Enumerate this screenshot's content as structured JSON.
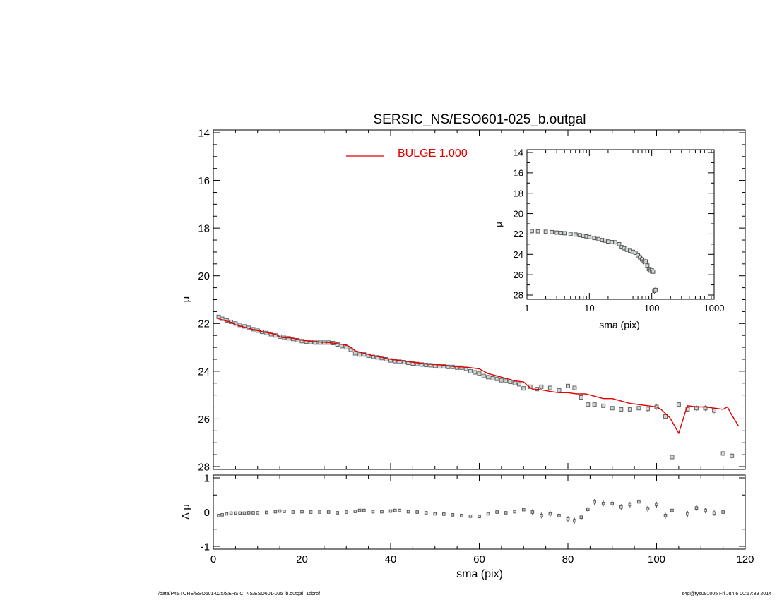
{
  "chart_data": [
    {
      "type": "scatter",
      "panel": "main",
      "title": "SERSIC_NS/ESO601-025_b.outgal",
      "xlabel": "",
      "ylabel": "μ",
      "xlim": [
        0,
        120
      ],
      "ylim": [
        28,
        14
      ],
      "y_inverted": true,
      "xticks": [
        0,
        20,
        40,
        60,
        80,
        100,
        120
      ],
      "yticks": [
        14,
        16,
        18,
        20,
        22,
        24,
        26,
        28
      ],
      "legend": {
        "placement": "top-center",
        "label": "BULGE  1.000",
        "color": "#e00000"
      },
      "series": [
        {
          "marker": "square-with-errorbar",
          "color": "#666666",
          "x": [
            1.2,
            2,
            3,
            4,
            5,
            6,
            7,
            8,
            9,
            10,
            11,
            12,
            13,
            14,
            15,
            16,
            17,
            18,
            19,
            20,
            21,
            22,
            23,
            24,
            25,
            26,
            27,
            28,
            29,
            30,
            31,
            32,
            33,
            34,
            35,
            36,
            37,
            38,
            39,
            40,
            41,
            42,
            43,
            44,
            45,
            46,
            47,
            48,
            49,
            50,
            51,
            52,
            53,
            54,
            55,
            56,
            57,
            58,
            59,
            60,
            61,
            62,
            63,
            64,
            65,
            66,
            67,
            68,
            69,
            70,
            71.5,
            73,
            74,
            76,
            78,
            80,
            81.5,
            83,
            84.5,
            86,
            88,
            90,
            92,
            94,
            96,
            98,
            100,
            102,
            103.5,
            105,
            107,
            109,
            111,
            113,
            115,
            117
          ],
          "y": [
            21.72,
            21.8,
            21.87,
            21.93,
            22.0,
            22.06,
            22.12,
            22.18,
            22.24,
            22.3,
            22.35,
            22.4,
            22.45,
            22.5,
            22.55,
            22.6,
            22.62,
            22.65,
            22.7,
            22.74,
            22.76,
            22.78,
            22.8,
            22.8,
            22.8,
            22.8,
            22.82,
            22.88,
            22.95,
            23.0,
            23.1,
            23.25,
            23.3,
            23.3,
            23.35,
            23.4,
            23.42,
            23.45,
            23.5,
            23.55,
            23.58,
            23.6,
            23.62,
            23.65,
            23.68,
            23.7,
            23.72,
            23.74,
            23.75,
            23.78,
            23.8,
            23.8,
            23.82,
            23.82,
            23.85,
            23.85,
            23.9,
            24.0,
            24.05,
            24.1,
            24.2,
            24.25,
            24.3,
            24.32,
            24.38,
            24.4,
            24.45,
            24.5,
            24.55,
            24.72,
            24.65,
            24.75,
            24.65,
            24.7,
            24.8,
            24.62,
            24.7,
            25.1,
            25.4,
            25.4,
            25.45,
            25.55,
            25.6,
            25.6,
            25.55,
            25.58,
            25.5,
            25.9,
            27.6,
            25.4,
            25.6,
            25.55,
            25.55,
            25.65,
            27.45,
            27.55
          ]
        },
        {
          "name": "BULGE  1.000",
          "marker": "line",
          "color": "#e00000",
          "x": [
            1.2,
            2,
            3,
            4,
            5,
            6,
            7,
            8,
            10,
            12,
            14,
            15,
            16,
            17,
            18,
            20,
            22,
            24,
            26,
            28,
            30,
            31,
            32,
            34,
            36,
            38,
            40,
            42,
            44,
            46,
            48,
            50,
            52,
            54,
            56,
            58,
            60,
            62,
            64,
            66,
            68,
            70,
            71,
            72,
            74,
            76,
            78,
            80,
            82,
            84,
            86,
            88,
            90,
            92,
            94,
            96,
            98,
            100,
            101,
            103,
            105,
            106.5,
            107,
            109,
            111,
            113,
            115,
            116,
            117,
            118.5
          ],
          "y": [
            21.8,
            21.85,
            21.9,
            21.95,
            22.05,
            22.1,
            22.15,
            22.2,
            22.3,
            22.38,
            22.45,
            22.55,
            22.6,
            22.6,
            22.62,
            22.7,
            22.75,
            22.78,
            22.8,
            22.85,
            22.9,
            23.0,
            23.15,
            23.25,
            23.35,
            23.42,
            23.5,
            23.55,
            23.6,
            23.65,
            23.7,
            23.72,
            23.75,
            23.8,
            23.82,
            23.85,
            23.9,
            24.1,
            24.2,
            24.3,
            24.4,
            24.45,
            24.62,
            24.75,
            24.78,
            24.85,
            24.9,
            24.9,
            24.95,
            24.95,
            25.05,
            25.15,
            25.15,
            25.25,
            25.35,
            25.4,
            25.45,
            25.5,
            25.6,
            25.95,
            26.6,
            25.7,
            25.45,
            25.5,
            25.5,
            25.55,
            25.6,
            25.5,
            25.85,
            26.3
          ]
        }
      ]
    },
    {
      "type": "scatter",
      "panel": "residual",
      "xlabel": "sma (pix)",
      "ylabel": "Δ μ",
      "xlim": [
        0,
        120
      ],
      "ylim": [
        -1,
        1
      ],
      "xticks": [
        0,
        20,
        40,
        60,
        80,
        100,
        120
      ],
      "yticks": [
        1,
        0,
        -1
      ],
      "series": [
        {
          "marker": "square-with-errorbar",
          "color": "#555555",
          "x": [
            1.2,
            2,
            3,
            4,
            5,
            6,
            7,
            8,
            9,
            10,
            12,
            14,
            15,
            16,
            18,
            20,
            22,
            24,
            26,
            28,
            30,
            32,
            33,
            34,
            36,
            38,
            40,
            41,
            42,
            44,
            46,
            48,
            50,
            52,
            54,
            56,
            58,
            60,
            62,
            64,
            66,
            68,
            70,
            72,
            74,
            76,
            78,
            80,
            81.5,
            83,
            84.5,
            86,
            88,
            90,
            92,
            94,
            96,
            98,
            100,
            102,
            103.5,
            107,
            109,
            111,
            113,
            115
          ],
          "y": [
            -0.1,
            -0.08,
            -0.05,
            -0.03,
            -0.03,
            -0.03,
            -0.03,
            -0.02,
            -0.02,
            -0.02,
            -0.01,
            0.01,
            0.03,
            0.02,
            0.0,
            0.01,
            0.0,
            0.0,
            0.0,
            -0.02,
            0.0,
            0.02,
            0.05,
            0.05,
            0.01,
            0.01,
            0.03,
            0.05,
            0.05,
            0.01,
            0.0,
            -0.02,
            -0.05,
            -0.06,
            -0.08,
            -0.1,
            -0.12,
            -0.13,
            -0.05,
            0.0,
            -0.02,
            0.01,
            0.07,
            0.0,
            -0.1,
            -0.05,
            -0.1,
            -0.2,
            -0.25,
            -0.15,
            0.08,
            0.3,
            0.25,
            0.25,
            0.15,
            0.22,
            0.3,
            0.1,
            0.22,
            -0.1,
            0.05,
            -0.05,
            0.12,
            0.05,
            -0.03,
            0.0
          ]
        }
      ]
    },
    {
      "type": "scatter",
      "panel": "inset",
      "xlabel": "sma (pix)",
      "ylabel": "μ",
      "x_scale": "log",
      "xlim": [
        1,
        1000
      ],
      "ylim": [
        28,
        14
      ],
      "y_inverted": true,
      "xticks": [
        1,
        10,
        100,
        1000
      ],
      "yticks": [
        14,
        16,
        18,
        20,
        22,
        24,
        26,
        28
      ],
      "series": [
        {
          "marker": "square-with-errorbar",
          "color": "#555555",
          "x": [
            1.2,
            1.5,
            2,
            2.5,
            3,
            3.5,
            4,
            5,
            6,
            7,
            8,
            9,
            10,
            12,
            14,
            16,
            18,
            20,
            23,
            26,
            30,
            33,
            36,
            40,
            45,
            50,
            55,
            60,
            65,
            70,
            75,
            80,
            85,
            90,
            95,
            100,
            105,
            110,
            115
          ],
          "y": [
            21.72,
            21.74,
            21.78,
            21.82,
            21.87,
            21.9,
            21.93,
            22.0,
            22.06,
            22.12,
            22.18,
            22.24,
            22.3,
            22.4,
            22.5,
            22.6,
            22.65,
            22.74,
            22.8,
            22.82,
            23.0,
            23.3,
            23.4,
            23.55,
            23.65,
            23.75,
            23.85,
            24.1,
            24.3,
            24.5,
            24.7,
            24.7,
            25.1,
            25.45,
            25.6,
            25.55,
            25.7,
            27.6,
            27.5
          ]
        }
      ]
    }
  ],
  "footer": {
    "left": "/data/P4STORE/ESO601-025/SERSIC_NS/ESO601-025_b.outgal_1dprof",
    "right": "s4g@fys091005  Fri Jun  6 00:17:39 2014"
  }
}
